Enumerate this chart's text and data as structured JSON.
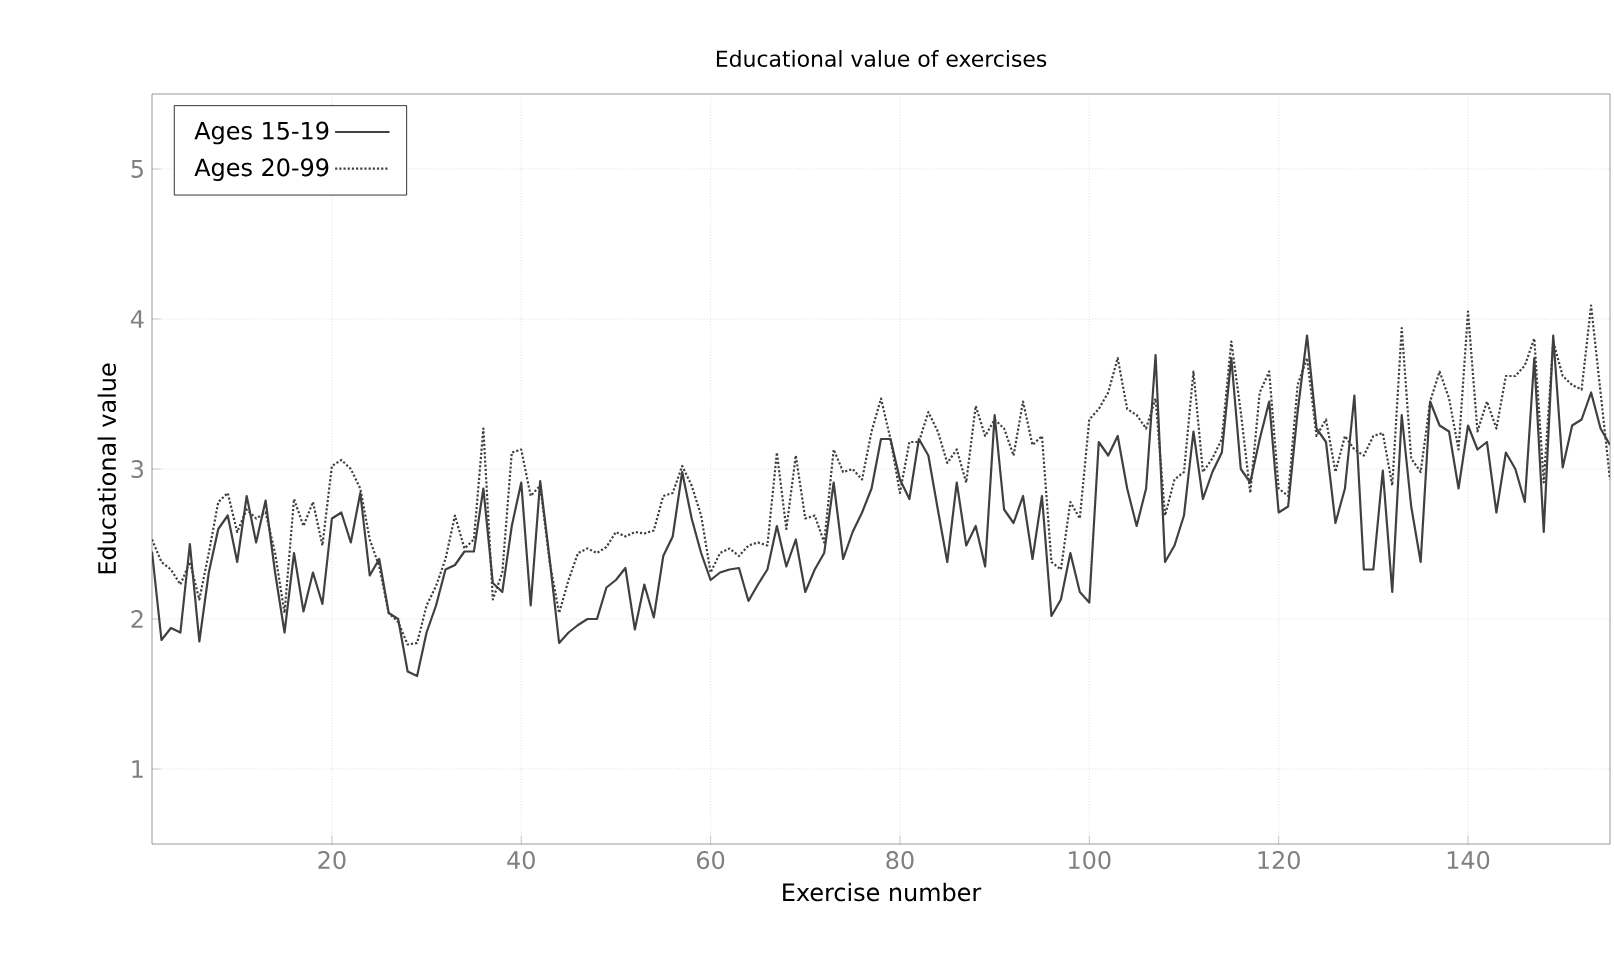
{
  "chart_data": {
    "type": "line",
    "title": "Educational value of exercises",
    "xlabel": "Exercise number",
    "ylabel": "Educational value",
    "x": [
      1,
      2,
      3,
      4,
      5,
      6,
      7,
      8,
      9,
      10,
      11,
      12,
      13,
      14,
      15,
      16,
      17,
      18,
      19,
      20,
      21,
      22,
      23,
      24,
      25,
      26,
      27,
      28,
      29,
      30,
      31,
      32,
      33,
      34,
      35,
      36,
      37,
      38,
      39,
      40,
      41,
      42,
      43,
      44,
      45,
      46,
      47,
      48,
      49,
      50,
      51,
      52,
      53,
      54,
      55,
      56,
      57,
      58,
      59,
      60,
      61,
      62,
      63,
      64,
      65,
      66,
      67,
      68,
      69,
      70,
      71,
      72,
      73,
      74,
      75,
      76,
      77,
      78,
      79,
      80,
      81,
      82,
      83,
      84,
      85,
      86,
      87,
      88,
      89,
      90,
      91,
      92,
      93,
      94,
      95,
      96,
      97,
      98,
      99,
      100,
      101,
      102,
      103,
      104,
      105,
      106,
      107,
      108,
      109,
      110,
      111,
      112,
      113,
      114,
      115,
      116,
      117,
      118,
      119,
      120,
      121,
      122,
      123,
      124,
      125,
      126,
      127,
      128,
      129,
      130,
      131,
      132,
      133,
      134,
      135,
      136,
      137,
      138,
      139,
      140,
      141,
      142,
      143,
      144,
      145,
      146,
      147,
      148,
      149,
      150,
      151,
      152,
      153,
      154,
      155
    ],
    "series": [
      {
        "name": "Ages 15-19",
        "color": "#404040",
        "line_style": "solid",
        "values": [
          2.45,
          1.86,
          1.94,
          1.91,
          2.5,
          1.85,
          2.31,
          2.6,
          2.69,
          2.38,
          2.82,
          2.51,
          2.79,
          2.31,
          1.91,
          2.44,
          2.05,
          2.31,
          2.1,
          2.67,
          2.71,
          2.51,
          2.84,
          2.29,
          2.4,
          2.04,
          2.0,
          1.65,
          1.62,
          1.91,
          2.09,
          2.33,
          2.36,
          2.45,
          2.45,
          2.87,
          2.24,
          2.18,
          2.62,
          2.91,
          2.09,
          2.92,
          2.4,
          1.84,
          1.91,
          1.96,
          2.0,
          2.0,
          2.21,
          2.26,
          2.34,
          1.93,
          2.23,
          2.01,
          2.42,
          2.55,
          2.98,
          2.67,
          2.44,
          2.26,
          2.31,
          2.33,
          2.34,
          2.12,
          2.23,
          2.33,
          2.62,
          2.35,
          2.53,
          2.18,
          2.33,
          2.44,
          2.91,
          2.4,
          2.58,
          2.71,
          2.87,
          3.2,
          3.2,
          2.93,
          2.8,
          3.2,
          3.09,
          2.73,
          2.38,
          2.91,
          2.49,
          2.62,
          2.35,
          3.36,
          2.73,
          2.64,
          2.82,
          2.4,
          2.82,
          2.02,
          2.13,
          2.44,
          2.18,
          2.11,
          3.18,
          3.09,
          3.22,
          2.87,
          2.62,
          2.87,
          3.76,
          2.38,
          2.49,
          2.69,
          3.25,
          2.8,
          2.98,
          3.11,
          3.74,
          3.0,
          2.91,
          3.2,
          3.45,
          2.71,
          2.75,
          3.38,
          3.89,
          3.27,
          3.18,
          2.64,
          2.87,
          3.49,
          2.33,
          2.33,
          2.99,
          2.18,
          3.36,
          2.75,
          2.38,
          3.45,
          3.29,
          3.25,
          2.87,
          3.29,
          3.13,
          3.18,
          2.71,
          3.11,
          3.0,
          2.78,
          3.74,
          2.58,
          3.89,
          3.01,
          3.29,
          3.33,
          3.51,
          3.27,
          3.16
        ]
      },
      {
        "name": "Ages 20-99",
        "color": "#404040",
        "line_style": "dotted",
        "values": [
          2.53,
          2.38,
          2.33,
          2.23,
          2.38,
          2.13,
          2.44,
          2.78,
          2.84,
          2.58,
          2.73,
          2.67,
          2.71,
          2.44,
          2.04,
          2.8,
          2.62,
          2.78,
          2.49,
          3.02,
          3.06,
          3.0,
          2.87,
          2.53,
          2.35,
          2.04,
          1.98,
          1.83,
          1.84,
          2.09,
          2.22,
          2.4,
          2.69,
          2.47,
          2.53,
          3.27,
          2.13,
          2.31,
          3.11,
          3.13,
          2.82,
          2.89,
          2.38,
          2.04,
          2.26,
          2.44,
          2.47,
          2.44,
          2.48,
          2.58,
          2.55,
          2.58,
          2.57,
          2.59,
          2.82,
          2.84,
          3.02,
          2.89,
          2.69,
          2.31,
          2.44,
          2.47,
          2.42,
          2.49,
          2.51,
          2.49,
          3.11,
          2.6,
          3.09,
          2.67,
          2.69,
          2.51,
          3.13,
          2.98,
          3.0,
          2.93,
          3.25,
          3.47,
          3.2,
          2.84,
          3.18,
          3.18,
          3.38,
          3.25,
          3.04,
          3.13,
          2.91,
          3.42,
          3.22,
          3.33,
          3.27,
          3.09,
          3.45,
          3.16,
          3.22,
          2.38,
          2.33,
          2.78,
          2.67,
          3.33,
          3.4,
          3.51,
          3.74,
          3.4,
          3.36,
          3.27,
          3.47,
          2.69,
          2.93,
          2.98,
          3.65,
          2.98,
          3.07,
          3.2,
          3.85,
          3.38,
          2.84,
          3.51,
          3.65,
          2.87,
          2.82,
          3.56,
          3.74,
          3.22,
          3.33,
          2.98,
          3.22,
          3.13,
          3.09,
          3.22,
          3.24,
          2.89,
          3.94,
          3.07,
          2.98,
          3.45,
          3.65,
          3.47,
          3.13,
          4.05,
          3.25,
          3.45,
          3.27,
          3.62,
          3.62,
          3.69,
          3.87,
          2.91,
          3.85,
          3.62,
          3.56,
          3.53,
          4.09,
          3.51,
          2.93
        ]
      }
    ],
    "xlim": [
      1,
      155
    ],
    "ylim": [
      0.5,
      5.5
    ],
    "xticks": [
      20,
      40,
      60,
      80,
      100,
      120,
      140
    ],
    "yticks": [
      1,
      2,
      3,
      4,
      5
    ],
    "grid": true,
    "legend": "top left",
    "marker": "none"
  }
}
